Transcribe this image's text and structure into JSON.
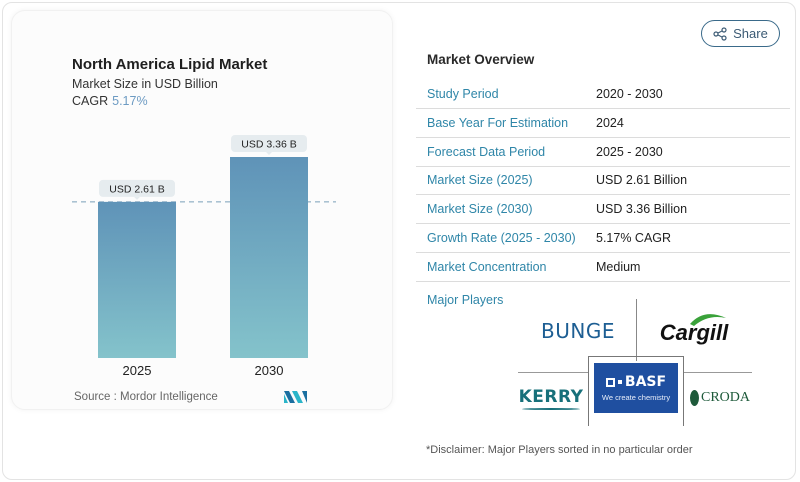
{
  "chart_card": {
    "title": "North America Lipid Market",
    "subtitle": "Market Size in USD Billion",
    "cagr_label": "CAGR",
    "cagr_value": "5.17%",
    "source": "Source :  Mordor Intelligence"
  },
  "chart_data": {
    "type": "bar",
    "title": "North America Lipid Market",
    "subtitle": "Market Size in USD Billion",
    "categories": [
      "2025",
      "2030"
    ],
    "values": [
      2.61,
      3.36
    ],
    "data_labels": [
      "USD 2.61 B",
      "USD 3.36 B"
    ],
    "xlabel": "",
    "ylabel": "Market Size in USD Billion",
    "reference_line": 2.61,
    "grid": false,
    "colors": {
      "bar_top": "#5f93b8",
      "bar_bottom": "#84c3cb"
    }
  },
  "share": {
    "label": "Share",
    "icon": "share-icon"
  },
  "overview": {
    "title": "Market Overview",
    "rows": [
      {
        "key": "Study Period",
        "value": "2020 - 2030"
      },
      {
        "key": "Base Year For Estimation",
        "value": "2024"
      },
      {
        "key": "Forecast Data Period",
        "value": "2025 - 2030"
      },
      {
        "key": "Market Size (2025)",
        "value": "USD 2.61 Billion"
      },
      {
        "key": "Market Size (2030)",
        "value": "USD 3.36 Billion"
      },
      {
        "key": "Growth Rate (2025 - 2030)",
        "value": "5.17% CAGR"
      },
      {
        "key": "Market Concentration",
        "value": "Medium"
      }
    ],
    "major_players_label": "Major Players",
    "players": [
      {
        "name": "BUNGE"
      },
      {
        "name": "Cargill"
      },
      {
        "name": "KERRY"
      },
      {
        "name": "BASF",
        "tagline": "We create chemistry"
      },
      {
        "name": "CRODA"
      }
    ],
    "disclaimer": "*Disclaimer: Major Players sorted in no particular order"
  },
  "colors": {
    "accent": "#2f86a8",
    "basf_blue": "#1f4fa0",
    "cargill_green": "#3aa23a"
  }
}
